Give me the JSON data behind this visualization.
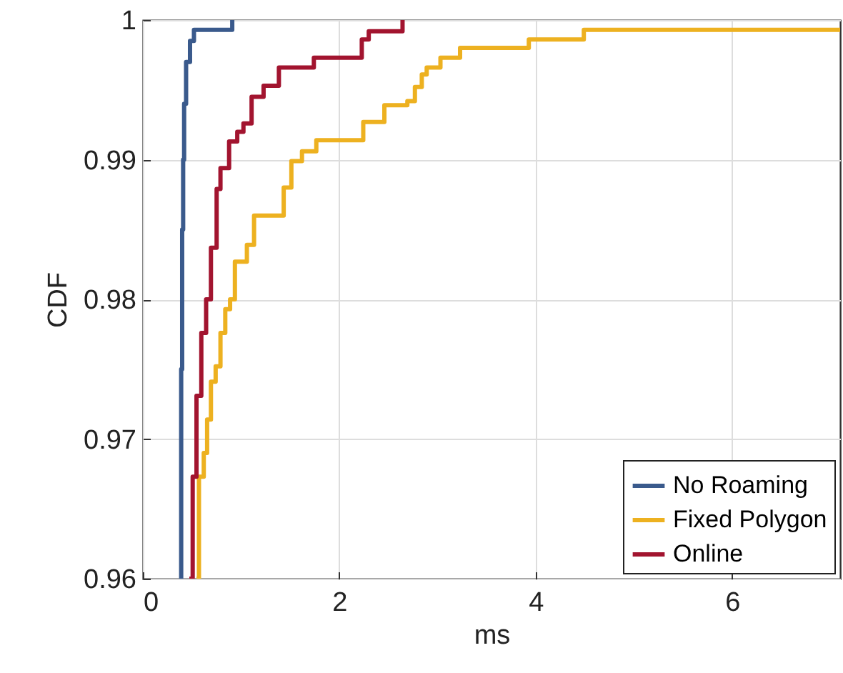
{
  "chart_data": {
    "type": "step",
    "xlabel": "ms",
    "ylabel": "CDF",
    "xlim": [
      0,
      7.1
    ],
    "ylim": [
      0.96,
      1
    ],
    "xticks": [
      0,
      2,
      4,
      6
    ],
    "yticks": [
      0.96,
      0.97,
      0.98,
      0.99,
      1
    ],
    "grid": true,
    "legend": "bottom right",
    "series": [
      {
        "name": "No Roaming",
        "color": "#3a5a8c",
        "x": [
          0.385,
          0.39,
          0.4,
          0.41,
          0.42,
          0.44,
          0.48,
          0.52,
          0.91
        ],
        "values": [
          0.96,
          0.975,
          0.985,
          0.99,
          0.994,
          0.997,
          0.9985,
          0.9993,
          1
        ]
      },
      {
        "name": "Fixed Polygon",
        "color": "#edb120",
        "x": [
          0.546,
          0.571,
          0.62,
          0.654,
          0.693,
          0.741,
          0.79,
          0.839,
          0.888,
          0.937,
          1.059,
          1.132,
          1.434,
          1.512,
          1.62,
          1.766,
          2.244,
          2.459,
          2.693,
          2.77,
          2.84,
          2.89,
          3.03,
          3.23,
          3.93,
          4.49,
          7.1
        ],
        "values": [
          0.96,
          0.9673,
          0.969,
          0.9714,
          0.9741,
          0.9752,
          0.9776,
          0.9793,
          0.98,
          0.9827,
          0.9839,
          0.986,
          0.988,
          0.9899,
          0.9906,
          0.9914,
          0.9927,
          0.9939,
          0.9942,
          0.9952,
          0.9961,
          0.9966,
          0.9973,
          0.998,
          0.9986,
          0.9993,
          0.9993
        ]
      },
      {
        "name": "Online",
        "color": "#a2142f",
        "x": [
          0.473,
          0.507,
          0.546,
          0.595,
          0.644,
          0.693,
          0.751,
          0.79,
          0.878,
          0.961,
          1.024,
          1.107,
          1.229,
          1.385,
          1.741,
          2.229,
          2.3,
          2.644
        ],
        "values": [
          0.96,
          0.9673,
          0.9731,
          0.9776,
          0.98,
          0.9837,
          0.9879,
          0.9894,
          0.9913,
          0.992,
          0.9926,
          0.9945,
          0.9953,
          0.9966,
          0.9973,
          0.9986,
          0.9992,
          1
        ]
      }
    ]
  }
}
